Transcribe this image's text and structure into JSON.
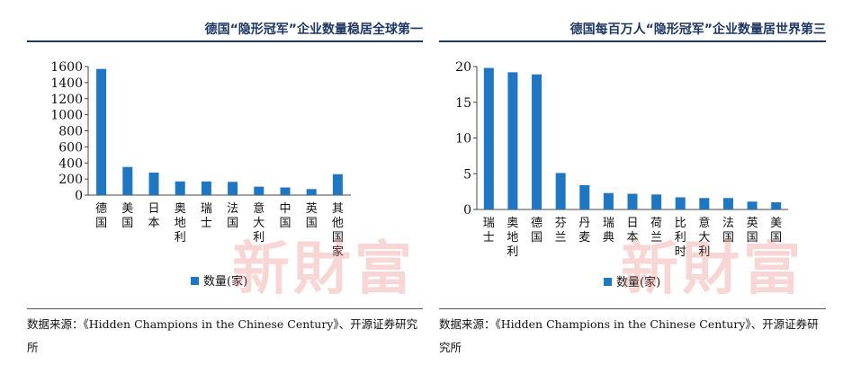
{
  "watermark": "新財富",
  "colors": {
    "bar": "#1f77c4",
    "title": "#1f3864"
  },
  "chart_data": [
    {
      "type": "bar",
      "title": "德国“隐形冠军”企业数量稳居全球第一",
      "categories": [
        "德国",
        "美国",
        "日本",
        "奥地利",
        "瑞士",
        "法国",
        "意大利",
        "中国",
        "英国",
        "其他国家"
      ],
      "series": [
        {
          "name": "数量(家)",
          "values": [
            1570,
            350,
            280,
            170,
            170,
            165,
            105,
            95,
            75,
            260
          ]
        }
      ],
      "yticks": [
        "0",
        "200",
        "400",
        "600",
        "800",
        "1000",
        "1200",
        "1400",
        "1600"
      ],
      "ylim": [
        0,
        1600
      ],
      "legend_position": "bottom",
      "grid": false,
      "source": "数据来源：《Hidden Champions in the Chinese Century》、开源证券研究所"
    },
    {
      "type": "bar",
      "title": "德国每百万人“隐形冠军”企业数量居世界第三",
      "categories": [
        "瑞士",
        "奥地利",
        "德国",
        "芬兰",
        "丹麦",
        "瑞典",
        "日本",
        "荷兰",
        "比利时",
        "意大利",
        "法国",
        "英国",
        "美国"
      ],
      "series": [
        {
          "name": "数量(家)",
          "values": [
            19.8,
            19.2,
            18.9,
            5.1,
            3.4,
            2.3,
            2.2,
            2.1,
            1.7,
            1.6,
            1.6,
            1.1,
            1.0
          ]
        }
      ],
      "yticks": [
        "0",
        "5",
        "10",
        "15",
        "20"
      ],
      "ylim": [
        0,
        20
      ],
      "legend_position": "bottom",
      "grid": false,
      "source": "数据来源：《Hidden Champions in the Chinese Century》、开源证券研究所"
    }
  ]
}
